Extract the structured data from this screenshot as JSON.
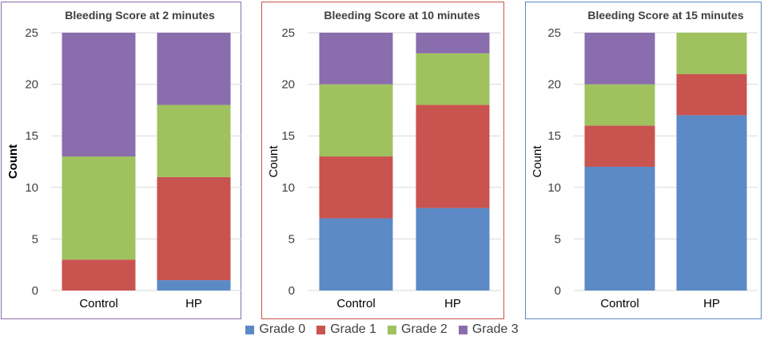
{
  "colors": {
    "grade0": "#5b8ac6",
    "grade1": "#c9534f",
    "grade2": "#9fc25f",
    "grade3": "#8a6dad",
    "grid": "#d9d9d9",
    "text": "#404040",
    "axis_text": "#000000"
  },
  "legend": {
    "position": "bottom",
    "items": [
      {
        "label": "Grade 0",
        "color_key": "grade0"
      },
      {
        "label": "Grade 1",
        "color_key": "grade1"
      },
      {
        "label": "Grade 2",
        "color_key": "grade2"
      },
      {
        "label": "Grade 3",
        "color_key": "grade3"
      }
    ]
  },
  "chart_data": [
    {
      "type": "bar",
      "stacked": true,
      "title": "Bleeding Score at 2 minutes",
      "ylabel": "Count",
      "ylabel_bold": true,
      "border_color": "#8a6dad",
      "categories": [
        "Control",
        "HP"
      ],
      "series": [
        {
          "name": "Grade 0",
          "values": [
            0,
            1
          ]
        },
        {
          "name": "Grade 1",
          "values": [
            3,
            10
          ]
        },
        {
          "name": "Grade 2",
          "values": [
            10,
            7
          ]
        },
        {
          "name": "Grade 3",
          "values": [
            12,
            7
          ]
        }
      ],
      "ylim": [
        0,
        25
      ],
      "yticks": [
        0,
        5,
        10,
        15,
        20,
        25
      ],
      "grid": true
    },
    {
      "type": "bar",
      "stacked": true,
      "title": "Bleeding Score at 10 minutes",
      "ylabel": "Count",
      "ylabel_bold": false,
      "border_color": "#c9534f",
      "categories": [
        "Control",
        "HP"
      ],
      "series": [
        {
          "name": "Grade 0",
          "values": [
            7,
            8
          ]
        },
        {
          "name": "Grade 1",
          "values": [
            6,
            10
          ]
        },
        {
          "name": "Grade 2",
          "values": [
            7,
            5
          ]
        },
        {
          "name": "Grade 3",
          "values": [
            5,
            2
          ]
        }
      ],
      "ylim": [
        0,
        25
      ],
      "yticks": [
        0,
        5,
        10,
        15,
        20,
        25
      ],
      "grid": true
    },
    {
      "type": "bar",
      "stacked": true,
      "title": "Bleeding Score at 15 minutes",
      "ylabel": "Count",
      "ylabel_bold": false,
      "border_color": "#5b8ac6",
      "categories": [
        "Control",
        "HP"
      ],
      "series": [
        {
          "name": "Grade 0",
          "values": [
            12,
            17
          ]
        },
        {
          "name": "Grade 1",
          "values": [
            4,
            4
          ]
        },
        {
          "name": "Grade 2",
          "values": [
            4,
            4
          ]
        },
        {
          "name": "Grade 3",
          "values": [
            5,
            0
          ]
        }
      ],
      "ylim": [
        0,
        25
      ],
      "yticks": [
        0,
        5,
        10,
        15,
        20,
        25
      ],
      "grid": true
    }
  ]
}
